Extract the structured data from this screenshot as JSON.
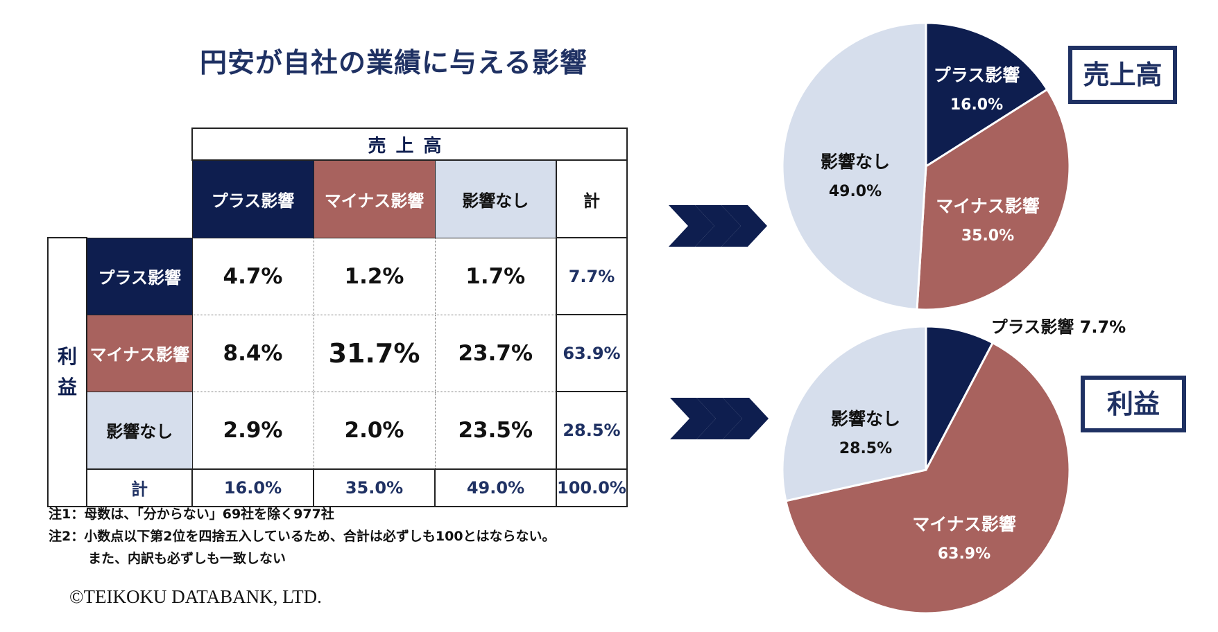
{
  "title": "円安が自社の業績に与える影響",
  "table": {
    "top_header": "売上高",
    "side_header": "利益",
    "columns": [
      "プラス影響",
      "マイナス影響",
      "影響なし",
      "計"
    ],
    "rows": [
      {
        "label": "プラス影響",
        "values": [
          "4.7%",
          "1.2%",
          "1.7%"
        ],
        "total": "7.7%"
      },
      {
        "label": "マイナス影響",
        "values": [
          "8.4%",
          "31.7%",
          "23.7%"
        ],
        "total": "63.9%"
      },
      {
        "label": "影響なし",
        "values": [
          "2.9%",
          "2.0%",
          "23.5%"
        ],
        "total": "28.5%"
      }
    ],
    "total_row": {
      "label": "計",
      "values": [
        "16.0%",
        "35.0%",
        "49.0%"
      ],
      "total": "100.0%"
    }
  },
  "notes": [
    "注1：母数は、「分からない」69社を除く977社",
    "注2：小数点以下第2位を四捨五入しているため、合計は必ずしも100とはならない。",
    "　　　また、内訳も必ずしも一致しない"
  ],
  "copyright": "©TEIKOKU DATABANK, LTD.",
  "colors": {
    "plus": "#0e1e4f",
    "minus": "#a8625e",
    "none": "#d6deec",
    "accent": "#1f3163"
  },
  "chart_data": [
    {
      "type": "pie",
      "title": "売上高",
      "categories": [
        "プラス影響",
        "マイナス影響",
        "影響なし"
      ],
      "values": [
        16.0,
        35.0,
        49.0
      ],
      "labels": [
        "16.0%",
        "35.0%",
        "49.0%"
      ]
    },
    {
      "type": "pie",
      "title": "利益",
      "categories": [
        "プラス影響",
        "マイナス影響",
        "影響なし"
      ],
      "values": [
        7.7,
        63.9,
        28.5
      ],
      "labels": [
        "7.7%",
        "63.9%",
        "28.5%"
      ]
    }
  ]
}
